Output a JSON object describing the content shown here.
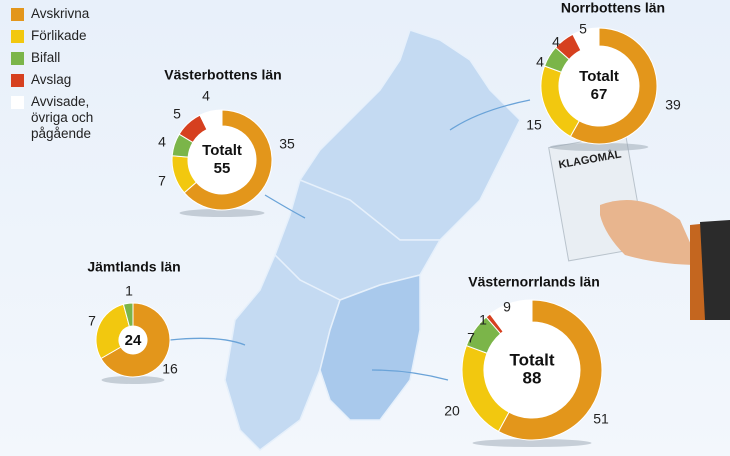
{
  "legend": {
    "names": [
      "Avskrivna",
      "Förlikade",
      "Bifall",
      "Avslag",
      "Avvisade, övriga och pågående"
    ],
    "colors": [
      "#e3961b",
      "#f2c80f",
      "#7bb549",
      "#d6401f",
      "#ffffff"
    ]
  },
  "illustration": {
    "paper_label": "KLAGOMÅL"
  },
  "chart_data": [
    {
      "type": "pie",
      "title": "Norrbottens län",
      "center_label": "Totalt",
      "total": 67,
      "values": [
        39,
        15,
        4,
        4,
        5
      ]
    },
    {
      "type": "pie",
      "title": "Västerbottens län",
      "center_label": "Totalt",
      "total": 55,
      "values": [
        35,
        7,
        4,
        5,
        4
      ]
    },
    {
      "type": "pie",
      "title": "Jämtlands län",
      "total": 24,
      "values": [
        16,
        7,
        1
      ]
    },
    {
      "type": "pie",
      "title": "Västernorrlands län",
      "center_label": "Totalt",
      "total": 88,
      "values": [
        51,
        20,
        7,
        1,
        9
      ]
    }
  ]
}
